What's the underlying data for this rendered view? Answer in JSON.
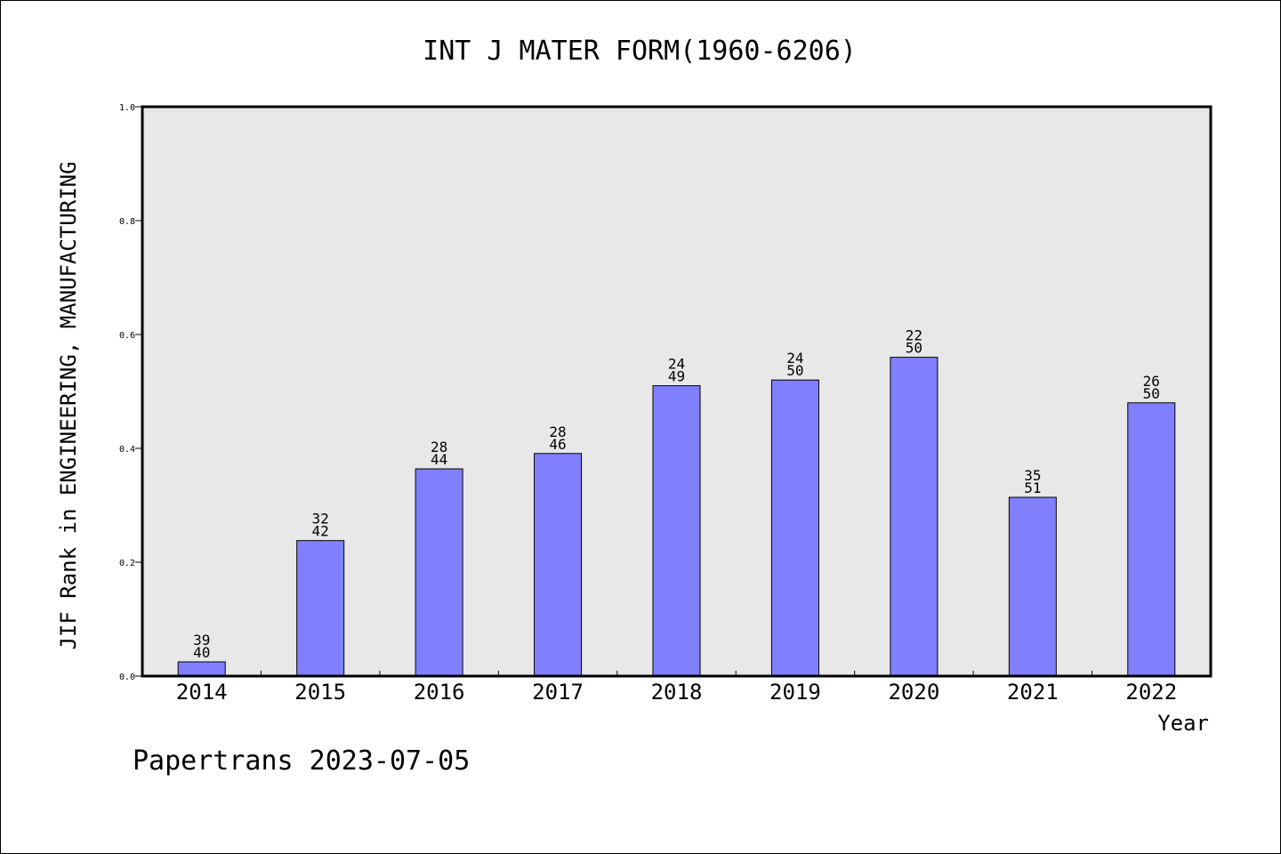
{
  "chart_data": {
    "type": "bar",
    "title": "INT J MATER FORM(1960-6206)",
    "xlabel": "Year",
    "ylabel": "JIF Rank in ENGINEERING, MANUFACTURING",
    "ylim": [
      0,
      1.0
    ],
    "yticks": [
      "0.0",
      "0.2",
      "0.4",
      "0.6",
      "0.8",
      "1.0"
    ],
    "categories": [
      "2014",
      "2015",
      "2016",
      "2017",
      "2018",
      "2019",
      "2020",
      "2021",
      "2022"
    ],
    "values": [
      0.025,
      0.238,
      0.364,
      0.391,
      0.51,
      0.52,
      0.56,
      0.314,
      0.48
    ],
    "bar_labels": [
      [
        "39",
        "40"
      ],
      [
        "32",
        "42"
      ],
      [
        "28",
        "44"
      ],
      [
        "28",
        "46"
      ],
      [
        "24",
        "49"
      ],
      [
        "24",
        "50"
      ],
      [
        "22",
        "50"
      ],
      [
        "35",
        "51"
      ],
      [
        "26",
        "50"
      ]
    ],
    "grid": false,
    "colors": {
      "bar": "#8080ff",
      "plot_bg": "#e8e8e8"
    }
  },
  "footer": {
    "credit": "Papertrans 2023-07-05"
  }
}
